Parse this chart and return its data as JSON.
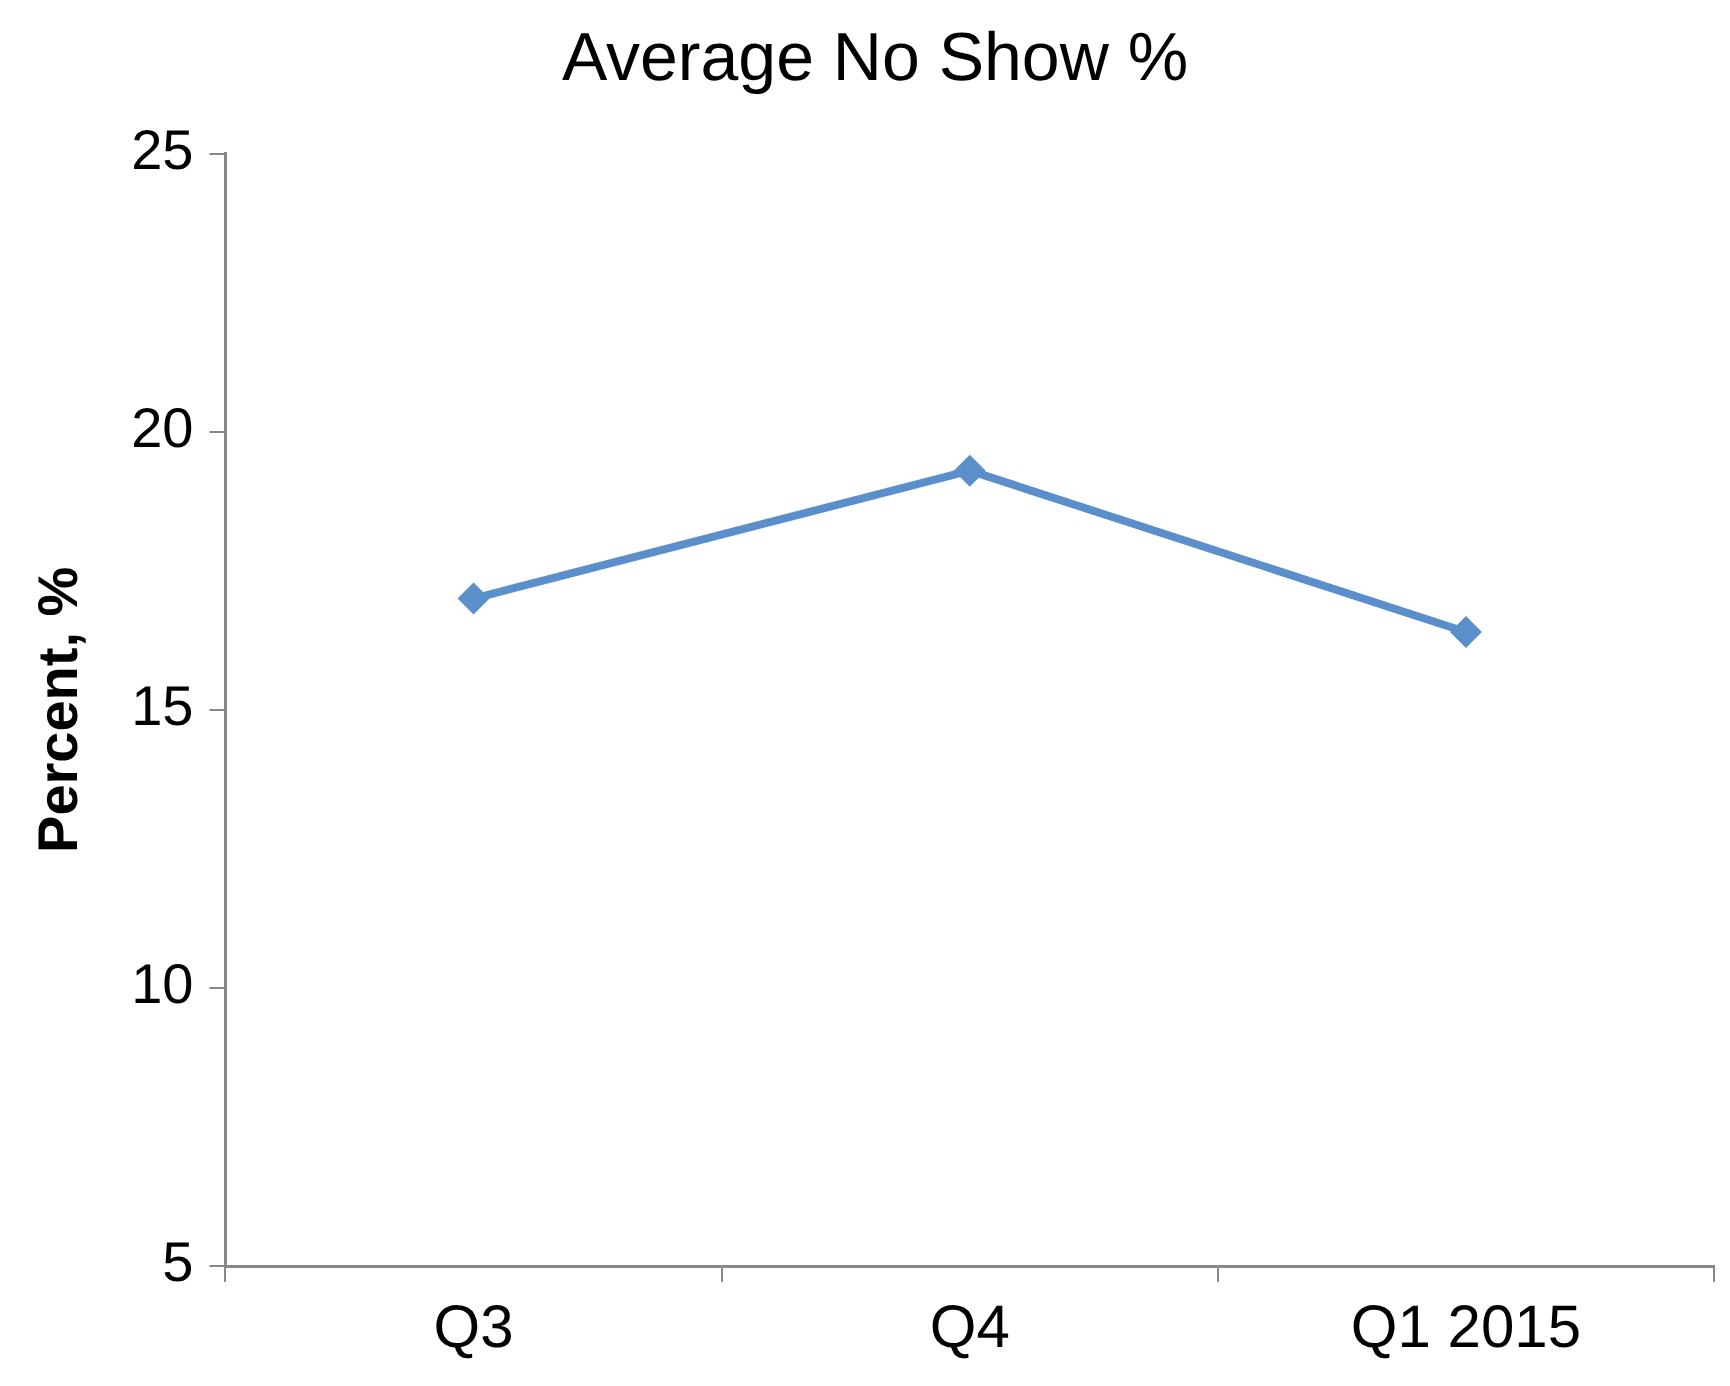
{
  "chart_data": {
    "type": "line",
    "title": "Average No Show %",
    "ylabel": "Percent, %",
    "categories": [
      "Q3",
      "Q4",
      "Q1 2015"
    ],
    "series": [
      {
        "color": "#5b8fcc",
        "values": [
          17.0,
          19.3,
          16.4
        ]
      }
    ],
    "ylim": [
      5,
      25
    ],
    "yticks": [
      5,
      10,
      15,
      20,
      25
    ],
    "grid": false,
    "legend": false,
    "marker": "diamond",
    "line_style": "solid"
  }
}
